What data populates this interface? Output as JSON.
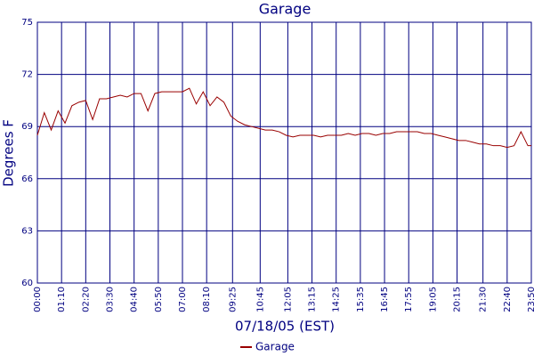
{
  "chart_data": {
    "type": "line",
    "title": "Garage",
    "xlabel": "07/18/05 (EST)",
    "ylabel": "Degrees F",
    "x": [
      0,
      20,
      40,
      60,
      80,
      100,
      120,
      140,
      160,
      180,
      200,
      220,
      240,
      260,
      280,
      300,
      320,
      340,
      360,
      380,
      400,
      420,
      440,
      460,
      480,
      500,
      520,
      540,
      560,
      580,
      600,
      620,
      640,
      660,
      680,
      700,
      720,
      740,
      760,
      780,
      800,
      820,
      840,
      860,
      880,
      900,
      920,
      940,
      960,
      980,
      1000,
      1020,
      1040,
      1060,
      1080,
      1100,
      1120,
      1140,
      1160,
      1180,
      1200,
      1220,
      1240,
      1260,
      1280,
      1300,
      1320,
      1340,
      1360,
      1380,
      1400,
      1420,
      1430
    ],
    "series": [
      {
        "name": "Garage",
        "color": "#990000",
        "values": [
          68.5,
          69.8,
          68.8,
          69.9,
          69.2,
          70.2,
          70.4,
          70.5,
          69.4,
          70.6,
          70.6,
          70.7,
          70.8,
          70.7,
          70.9,
          70.9,
          69.9,
          70.9,
          71.0,
          71.0,
          71.0,
          71.0,
          71.2,
          70.3,
          71.0,
          70.2,
          70.7,
          70.4,
          69.6,
          69.3,
          69.1,
          69.0,
          68.9,
          68.8,
          68.8,
          68.7,
          68.5,
          68.4,
          68.5,
          68.5,
          68.5,
          68.4,
          68.5,
          68.5,
          68.5,
          68.6,
          68.5,
          68.6,
          68.6,
          68.5,
          68.6,
          68.6,
          68.7,
          68.7,
          68.7,
          68.7,
          68.6,
          68.6,
          68.5,
          68.4,
          68.3,
          68.2,
          68.2,
          68.1,
          68.0,
          68.0,
          67.9,
          67.9,
          67.8,
          67.9,
          68.7,
          67.9,
          67.9
        ]
      }
    ],
    "xlim": [
      0,
      1430
    ],
    "xticks": [
      {
        "value": 0,
        "label": "00:00"
      },
      {
        "value": 70,
        "label": "01:10"
      },
      {
        "value": 140,
        "label": "02:20"
      },
      {
        "value": 210,
        "label": "03:30"
      },
      {
        "value": 280,
        "label": "04:40"
      },
      {
        "value": 350,
        "label": "05:50"
      },
      {
        "value": 420,
        "label": "07:00"
      },
      {
        "value": 490,
        "label": "08:10"
      },
      {
        "value": 565,
        "label": "09:25"
      },
      {
        "value": 645,
        "label": "10:45"
      },
      {
        "value": 725,
        "label": "12:05"
      },
      {
        "value": 795,
        "label": "13:15"
      },
      {
        "value": 865,
        "label": "14:25"
      },
      {
        "value": 935,
        "label": "15:35"
      },
      {
        "value": 1005,
        "label": "16:45"
      },
      {
        "value": 1075,
        "label": "17:55"
      },
      {
        "value": 1145,
        "label": "19:05"
      },
      {
        "value": 1215,
        "label": "20:15"
      },
      {
        "value": 1290,
        "label": "21:30"
      },
      {
        "value": 1360,
        "label": "22:40"
      },
      {
        "value": 1430,
        "label": "23:50"
      }
    ],
    "ylim": [
      60,
      75
    ],
    "yticks": [
      60,
      63,
      66,
      69,
      72,
      75
    ],
    "grid": true,
    "legend": "bottom"
  }
}
